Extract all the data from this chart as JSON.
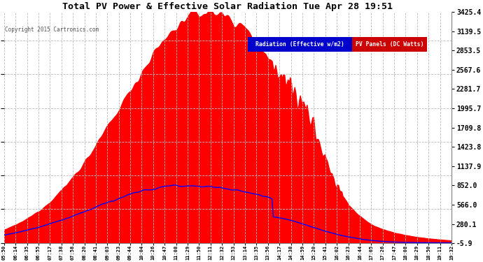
{
  "title": "Total PV Power & Effective Solar Radiation Tue Apr 28 19:51",
  "copyright": "Copyright 2015 Cartronics.com",
  "legend_radiation": "Radiation (Effective w/m2)",
  "legend_pv": "PV Panels (DC Watts)",
  "legend_radiation_bg": "#0000cc",
  "legend_pv_bg": "#cc0000",
  "bg_color": "#ffffff",
  "plot_bg_color": "#ffffff",
  "grid_color": "#aaaaaa",
  "title_color": "#000000",
  "ytick_color": "#000000",
  "xtick_color": "#000000",
  "y_right_values": [
    3425.4,
    3139.5,
    2853.5,
    2567.6,
    2281.7,
    1995.7,
    1709.8,
    1423.8,
    1137.9,
    852.0,
    566.0,
    280.1,
    -5.9
  ],
  "pv_color": "#ff0000",
  "radiation_line_color": "#0000ff",
  "x_labels": [
    "05:50",
    "06:14",
    "06:35",
    "06:55",
    "07:17",
    "07:38",
    "07:58",
    "08:20",
    "08:41",
    "09:03",
    "09:23",
    "09:44",
    "10:04",
    "10:26",
    "10:47",
    "11:08",
    "11:29",
    "11:50",
    "12:11",
    "12:32",
    "12:53",
    "13:14",
    "13:35",
    "13:56",
    "14:17",
    "14:38",
    "14:59",
    "15:20",
    "15:41",
    "16:02",
    "16:23",
    "16:44",
    "17:05",
    "17:26",
    "17:47",
    "18:08",
    "18:29",
    "18:50",
    "19:11",
    "19:32"
  ],
  "y_min": -5.9,
  "y_max": 3425.4
}
